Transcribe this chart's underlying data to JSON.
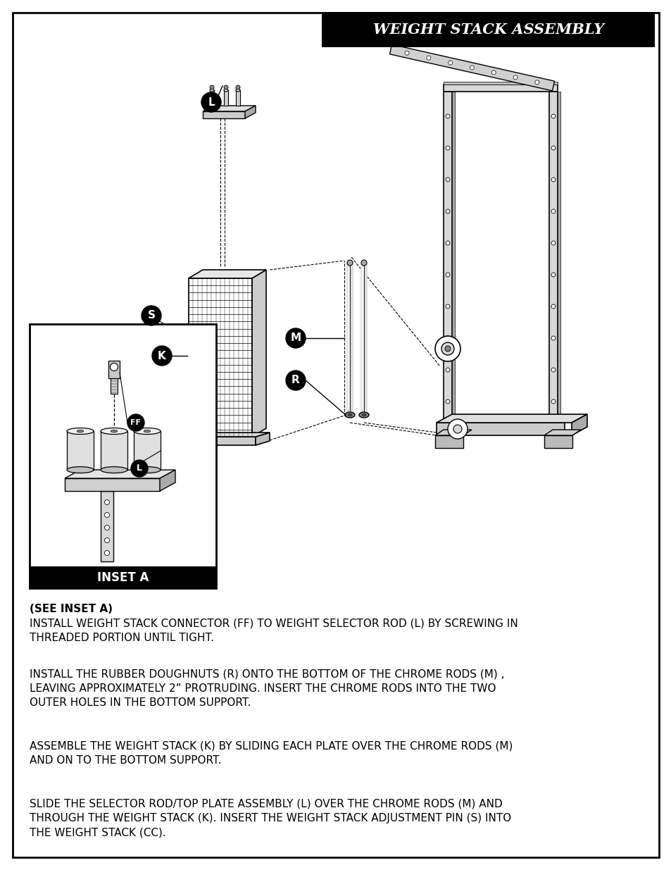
{
  "title": "WEIGHT STACK ASSEMBLY",
  "title_bg": "#000000",
  "title_color": "#ffffff",
  "page_bg": "#ffffff",
  "border_color": "#000000",
  "p1_bold": "(SEE INSET A)",
  "p1_body": "INSTALL WEIGHT STACK CONNECTOR (​FF​) TO WEIGHT SELECTOR ROD (​L​) BY SCREWING IN\nTHREADED PORTION UNTIL TIGHT.",
  "p2": "INSTALL THE RUBBER DOUGHNUTS (​R​) ONTO THE BOTTOM OF THE CHROME RODS (​M​) ,\nLEAVING APPROXIMATELY 2” PROTRUDING. INSERT THE CHROME RODS INTO THE TWO\nOUTER HOLES IN THE BOTTOM SUPPORT.",
  "p3": "ASSEMBLE THE WEIGHT STACK (​K​) BY SLIDING EACH PLATE OVER THE CHROME RODS (​M​)\nAND ON TO THE BOTTOM SUPPORT.",
  "p4": "SLIDE THE SELECTOR ROD/TOP PLATE ASSEMBLY (​L​) OVER THE CHROME RODS (​M​) AND\nTHROUGH THE WEIGHT STACK (​K​). INSERT THE WEIGHT STACK ADJUSTMENT PIN (​S​) INTO\nTHE WEIGHT STACK (​CC​).",
  "inset_title": "INSET A"
}
